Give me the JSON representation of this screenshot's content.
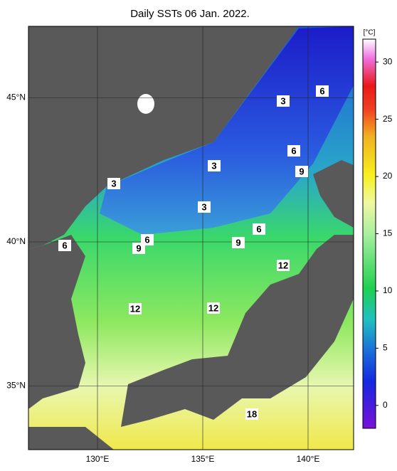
{
  "title": "Daily SSTs 06 Jan. 2022.",
  "lon_ticks": [
    {
      "value": 130,
      "label": "130°E"
    },
    {
      "value": 135,
      "label": "135°E"
    },
    {
      "value": 140,
      "label": "140°E"
    }
  ],
  "lat_ticks": [
    {
      "value": 45,
      "label": "45°N"
    },
    {
      "value": 40,
      "label": "40°N"
    },
    {
      "value": 35,
      "label": "35°N"
    }
  ],
  "colorbar": {
    "unit": "[°C]",
    "range": [
      -2,
      32
    ],
    "ticks": [
      0,
      5,
      10,
      15,
      20,
      25,
      30
    ]
  },
  "contour_labels": [
    6,
    3,
    6,
    3,
    9,
    3,
    3,
    6,
    6,
    6,
    9,
    9,
    12,
    12,
    12,
    18
  ]
}
